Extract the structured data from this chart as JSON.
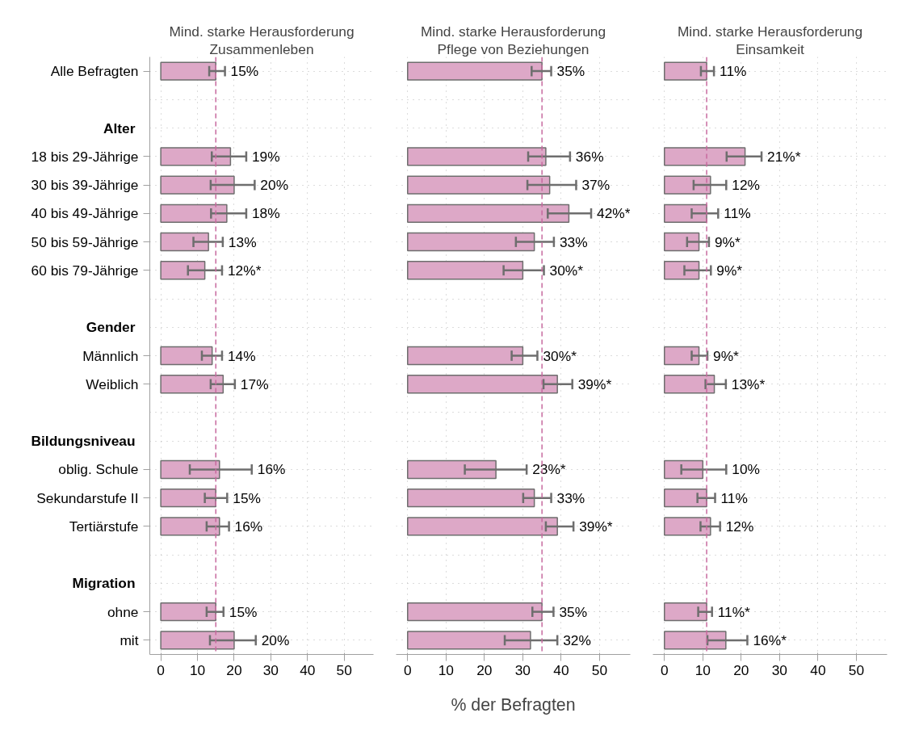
{
  "chart_data": [
    {
      "type": "bar",
      "orientation": "horizontal",
      "title": "Mind. starke Herausforderung",
      "subtitle": "Zusammenleben",
      "categories": [
        "Alle Befragten",
        null,
        "Alter",
        "18 bis 29-Jährige",
        "30 bis 39-Jährige",
        "40 bis 49-Jährige",
        "50 bis 59-Jährige",
        "60 bis 79-Jährige",
        null,
        "Gender",
        "Männlich",
        "Weiblich",
        null,
        "Bildungsniveau",
        "oblig. Schule",
        "Sekundarstufe II",
        "Tertiärstufe",
        null,
        "Migration",
        "ohne",
        "mit"
      ],
      "values": [
        15,
        null,
        null,
        19,
        20,
        18,
        13,
        12,
        null,
        null,
        14,
        17,
        null,
        null,
        16,
        15,
        16,
        null,
        null,
        15,
        20
      ],
      "errors": [
        [
          13.2,
          17.5
        ],
        null,
        null,
        [
          13.9,
          23.3
        ],
        [
          13.6,
          25.6
        ],
        [
          13.7,
          23.3
        ],
        [
          8.9,
          16.9
        ],
        [
          7.4,
          16.7
        ],
        null,
        null,
        [
          11.2,
          16.7
        ],
        [
          13.6,
          20.2
        ],
        null,
        null,
        [
          7.9,
          24.8
        ],
        [
          12.0,
          18.1
        ],
        [
          12.5,
          18.6
        ],
        null,
        null,
        [
          12.5,
          17.1
        ],
        [
          13.4,
          25.9
        ]
      ],
      "value_labels": [
        "15%",
        null,
        null,
        "19%",
        "20%",
        "18%",
        "13%",
        "12%*",
        null,
        null,
        "14%",
        "17%",
        null,
        null,
        "16%",
        "15%",
        "16%",
        null,
        null,
        "15%",
        "20%"
      ],
      "color": "#dda8c7",
      "xlim": [
        -3,
        58
      ],
      "xticks": [
        0,
        10,
        20,
        30,
        40,
        50
      ],
      "grid": true,
      "ref_lines": [
        {
          "axis": "x",
          "value": 15,
          "color": "#c76a9f",
          "line_style": "dashed"
        }
      ]
    },
    {
      "type": "bar",
      "orientation": "horizontal",
      "title": "Mind. starke Herausforderung",
      "subtitle": "Pflege von Beziehungen",
      "xlabel": "% der Befragten",
      "categories": [
        null,
        null,
        null,
        null,
        null,
        null,
        null,
        null,
        null,
        null,
        null,
        null,
        null,
        null,
        null,
        null,
        null,
        null,
        null,
        null,
        null
      ],
      "values": [
        35,
        null,
        null,
        36,
        37,
        42,
        33,
        30,
        null,
        null,
        30,
        39,
        null,
        null,
        23,
        33,
        39,
        null,
        null,
        35,
        32
      ],
      "errors": [
        [
          32.3,
          37.4
        ],
        null,
        null,
        [
          31.4,
          42.3
        ],
        [
          31.2,
          43.9
        ],
        [
          36.5,
          47.8
        ],
        [
          28.2,
          38.1
        ],
        [
          25.0,
          35.5
        ],
        null,
        null,
        [
          27.1,
          33.8
        ],
        [
          35.4,
          42.9
        ],
        null,
        null,
        [
          14.9,
          31.0
        ],
        [
          30.1,
          37.4
        ],
        [
          36.0,
          43.2
        ],
        null,
        null,
        [
          32.5,
          38.0
        ],
        [
          25.3,
          39.0
        ]
      ],
      "value_labels": [
        "35%",
        null,
        null,
        "36%",
        "37%",
        "42%*",
        "33%",
        "30%*",
        null,
        null,
        "30%*",
        "39%*",
        null,
        null,
        "23%*",
        "33%",
        "39%*",
        null,
        null,
        "35%",
        "32%"
      ],
      "color": "#dda8c7",
      "xlim": [
        -3,
        58
      ],
      "xticks": [
        0,
        10,
        20,
        30,
        40,
        50
      ],
      "grid": true,
      "tick_labels": "x",
      "ref_lines": [
        {
          "axis": "x",
          "value": 35,
          "color": "#c76a9f",
          "line_style": "dashed"
        }
      ]
    },
    {
      "type": "bar",
      "orientation": "horizontal",
      "title": "Mind. starke Herausforderung",
      "subtitle": "Einsamkeit",
      "categories": [
        null,
        null,
        null,
        null,
        null,
        null,
        null,
        null,
        null,
        null,
        null,
        null,
        null,
        null,
        null,
        null,
        null,
        null,
        null,
        null,
        null
      ],
      "values": [
        11,
        null,
        null,
        21,
        12,
        11,
        9,
        9,
        null,
        null,
        9,
        13,
        null,
        null,
        10,
        11,
        12,
        null,
        null,
        11,
        16
      ],
      "errors": [
        [
          9.5,
          12.9
        ],
        null,
        null,
        [
          16.2,
          25.3
        ],
        [
          7.6,
          16.1
        ],
        [
          7.1,
          14.0
        ],
        [
          5.9,
          11.6
        ],
        [
          5.2,
          12.1
        ],
        null,
        null,
        [
          7.1,
          11.2
        ],
        [
          10.7,
          16.0
        ],
        null,
        null,
        [
          4.4,
          16.1
        ],
        [
          8.6,
          13.2
        ],
        [
          9.4,
          14.5
        ],
        null,
        null,
        [
          8.8,
          12.4
        ],
        [
          11.2,
          21.6
        ]
      ],
      "value_labels": [
        "11%",
        null,
        null,
        "21%*",
        "12%",
        "11%",
        "9%*",
        "9%*",
        null,
        null,
        "9%*",
        "13%*",
        null,
        null,
        "10%",
        "11%",
        "12%",
        null,
        null,
        "11%*",
        "16%*"
      ],
      "color": "#dda8c7",
      "xlim": [
        -3,
        58
      ],
      "xticks": [
        0,
        10,
        20,
        30,
        40,
        50
      ],
      "grid": true,
      "tick_labels": "x",
      "ref_lines": [
        {
          "axis": "x",
          "value": 11,
          "color": "#c76a9f",
          "line_style": "dashed"
        }
      ]
    }
  ]
}
